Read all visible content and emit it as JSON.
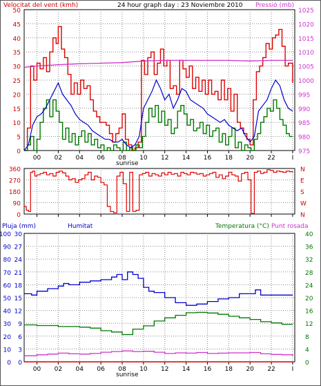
{
  "header": {
    "left_title": "Velocitat del vent (kmh)",
    "center_title": "24 hour graph day : 23 Noviembre 2010",
    "right_title": "Pressió (mb)"
  },
  "labels": {
    "sunrise": "sunrise",
    "pluja": "Pluja (mm)",
    "humitat": "Humitat",
    "temperatura": "Temperatura (°C)",
    "punt_rosada": "Punt rosada"
  },
  "colors": {
    "wind_gust": "#dd0000",
    "wind_avg": "#0000cc",
    "wind_speed": "#007700",
    "pressure": "#cc33cc",
    "direction": "#dd0000",
    "humidity": "#0000cc",
    "temperature": "#007700",
    "dewpoint": "#cc33cc",
    "rain": "#cc0000",
    "axis_left": "#cc0000",
    "axis_right_pressure": "#cc33cc",
    "axis_rain": "#0000cc",
    "axis_temp": "#007700"
  },
  "chart_data": [
    {
      "type": "line",
      "name_key": "wind",
      "x_ticks": [
        "00",
        "02",
        "04",
        "06",
        "08",
        "10",
        "12",
        "14",
        "16",
        "18",
        "20",
        "22",
        "I"
      ],
      "x_range": [
        -1.2,
        24.2
      ],
      "ylim": [
        0,
        50
      ],
      "y_ticks": [
        0,
        5,
        10,
        15,
        20,
        25,
        30,
        35,
        40,
        45,
        50
      ],
      "y2lim": [
        975,
        1025
      ],
      "y2_ticks": [
        975,
        980,
        985,
        990,
        995,
        1000,
        1005,
        1010,
        1015,
        1020,
        1025
      ],
      "grid": true,
      "series": [
        {
          "key": "gust",
          "x": [
            -1.2,
            -0.9,
            -0.6,
            -0.3,
            0,
            0.3,
            0.6,
            0.9,
            1.2,
            1.5,
            1.8,
            2.0,
            2.3,
            2.6,
            2.9,
            3.2,
            3.5,
            3.8,
            4.1,
            4.4,
            4.7,
            5.0,
            5.3,
            5.6,
            5.9,
            6.2,
            6.5,
            6.8,
            7.1,
            7.4,
            7.7,
            8.0,
            8.3,
            8.6,
            8.9,
            9.2,
            9.5,
            9.8,
            10.1,
            10.4,
            10.7,
            11.0,
            11.3,
            11.6,
            11.9,
            12.2,
            12.5,
            12.8,
            13.1,
            13.4,
            13.7,
            14.0,
            14.3,
            14.6,
            14.9,
            15.2,
            15.5,
            15.8,
            16.1,
            16.4,
            16.7,
            17.0,
            17.3,
            17.6,
            17.9,
            18.2,
            18.5,
            18.8,
            19.1,
            19.4,
            19.7,
            20.0,
            20.3,
            20.6,
            20.9,
            21.2,
            21.5,
            21.8,
            22.1,
            22.4,
            22.7,
            23.0,
            23.3,
            23.6,
            24.0
          ],
          "y": [
            0,
            8,
            30,
            25,
            31,
            29,
            33,
            28,
            35,
            40,
            38,
            44,
            36,
            33,
            27,
            20,
            24,
            20,
            25,
            22,
            23,
            18,
            14,
            12,
            10,
            10,
            9,
            6,
            3,
            6,
            8,
            13,
            4,
            2,
            0,
            1,
            3,
            32,
            27,
            33,
            35,
            27,
            31,
            36,
            30,
            32,
            22,
            23,
            20,
            32,
            29,
            26,
            30,
            22,
            26,
            21,
            25,
            20,
            25,
            20,
            21,
            18,
            25,
            18,
            22,
            14,
            20,
            10,
            8,
            6,
            4,
            2,
            18,
            28,
            30,
            33,
            38,
            36,
            40,
            41,
            43,
            37,
            30,
            31,
            24
          ]
        },
        {
          "key": "avg",
          "x": [
            -1.2,
            -0.8,
            -0.4,
            0,
            0.4,
            0.8,
            1.2,
            1.6,
            2.0,
            2.4,
            2.8,
            3.2,
            3.6,
            4.0,
            4.4,
            4.8,
            5.2,
            5.6,
            6.0,
            6.4,
            6.8,
            7.2,
            7.6,
            8.0,
            8.4,
            8.8,
            9.2,
            9.6,
            10.0,
            10.4,
            10.8,
            11.2,
            11.6,
            12.0,
            12.4,
            12.8,
            13.2,
            13.6,
            14.0,
            14.4,
            14.8,
            15.2,
            15.6,
            16.0,
            16.4,
            16.8,
            17.2,
            17.6,
            18.0,
            18.4,
            18.8,
            19.2,
            19.6,
            20.0,
            20.4,
            20.8,
            21.2,
            21.6,
            22.0,
            22.4,
            22.8,
            23.2,
            23.6,
            24.0
          ],
          "y": [
            0,
            2,
            9,
            12,
            13,
            15,
            18,
            21,
            24,
            20,
            18,
            16,
            13,
            11,
            10,
            9,
            7,
            6,
            5,
            4,
            4,
            3,
            3,
            4,
            2,
            1,
            2,
            5,
            15,
            18,
            21,
            25,
            22,
            18,
            20,
            15,
            18,
            22,
            21,
            18,
            17,
            16,
            15,
            13,
            12,
            11,
            10,
            11,
            9,
            8,
            7,
            8,
            5,
            3,
            5,
            14,
            16,
            18,
            22,
            25,
            23,
            18,
            15,
            14
          ]
        },
        {
          "key": "speed",
          "x": [
            -1.2,
            -0.9,
            -0.6,
            -0.3,
            0,
            0.3,
            0.6,
            0.9,
            1.2,
            1.5,
            1.8,
            2.1,
            2.4,
            2.7,
            3.0,
            3.3,
            3.6,
            3.9,
            4.2,
            4.5,
            4.8,
            5.1,
            5.4,
            5.7,
            6.0,
            6.3,
            6.6,
            6.9,
            7.2,
            7.5,
            7.8,
            8.1,
            8.4,
            8.7,
            9.0,
            9.3,
            9.6,
            9.9,
            10.2,
            10.5,
            10.8,
            11.1,
            11.4,
            11.7,
            12.0,
            12.3,
            12.6,
            12.9,
            13.2,
            13.5,
            13.8,
            14.1,
            14.4,
            14.7,
            15.0,
            15.3,
            15.6,
            15.9,
            16.2,
            16.5,
            16.8,
            17.1,
            17.4,
            17.7,
            18.0,
            18.3,
            18.6,
            18.9,
            19.2,
            19.5,
            19.8,
            20.1,
            20.4,
            20.7,
            21.0,
            21.3,
            21.6,
            21.9,
            22.2,
            22.5,
            22.8,
            23.1,
            23.4,
            23.7,
            24.0
          ],
          "y": [
            0,
            2,
            5,
            0,
            4,
            10,
            15,
            18,
            12,
            18,
            14,
            10,
            4,
            8,
            3,
            6,
            2,
            5,
            7,
            3,
            6,
            2,
            4,
            1,
            2,
            0,
            1,
            0,
            2,
            1,
            0,
            3,
            0,
            1,
            0,
            2,
            1,
            5,
            10,
            15,
            12,
            16,
            10,
            14,
            9,
            11,
            6,
            8,
            14,
            16,
            13,
            9,
            11,
            7,
            8,
            10,
            6,
            9,
            5,
            7,
            8,
            3,
            6,
            2,
            5,
            8,
            1,
            3,
            0,
            2,
            1,
            0,
            4,
            6,
            10,
            12,
            15,
            14,
            18,
            15,
            11,
            9,
            6,
            5,
            5
          ]
        },
        {
          "key": "pressure",
          "axis": "y2",
          "x": [
            -1.2,
            0,
            2,
            4,
            6,
            8,
            10,
            12,
            14,
            16,
            18,
            20,
            22,
            24
          ],
          "y": [
            1004.5,
            1005,
            1005.5,
            1005.8,
            1006,
            1006.2,
            1006.8,
            1007,
            1007,
            1007,
            1007,
            1006.8,
            1007,
            1007
          ]
        }
      ]
    },
    {
      "type": "scatter",
      "name_key": "wind_direction",
      "ylim": [
        0,
        360
      ],
      "y_ticks": [
        0,
        90,
        180,
        270,
        360
      ],
      "y2_ticks": [
        "N",
        "W",
        "S",
        "E",
        "N"
      ],
      "x": [
        -1.2,
        -1.0,
        -0.8,
        -0.6,
        -0.4,
        -0.2,
        0,
        0.3,
        0.6,
        0.9,
        1.2,
        1.5,
        1.8,
        2.1,
        2.4,
        2.7,
        3.0,
        3.3,
        3.6,
        3.9,
        4.2,
        4.5,
        4.8,
        5.1,
        5.4,
        5.7,
        6.0,
        6.3,
        6.6,
        6.9,
        7.2,
        7.5,
        7.8,
        8.1,
        8.4,
        8.7,
        9.0,
        9.3,
        9.6,
        9.9,
        10.2,
        10.5,
        10.8,
        11.1,
        11.4,
        11.7,
        12.0,
        12.3,
        12.6,
        12.9,
        13.2,
        13.5,
        13.8,
        14.1,
        14.4,
        14.7,
        15.0,
        15.3,
        15.6,
        15.9,
        16.2,
        16.5,
        16.8,
        17.1,
        17.4,
        17.7,
        18.0,
        18.3,
        18.6,
        18.9,
        19.2,
        19.5,
        19.8,
        20.1,
        20.4,
        20.7,
        21.0,
        21.3,
        21.6,
        21.9,
        22.2,
        22.5,
        22.8,
        23.1,
        23.4,
        23.7,
        24.0
      ],
      "y": [
        60,
        30,
        20,
        330,
        340,
        300,
        310,
        320,
        330,
        310,
        320,
        300,
        330,
        340,
        325,
        300,
        270,
        280,
        250,
        270,
        280,
        310,
        330,
        270,
        300,
        290,
        250,
        230,
        60,
        20,
        10,
        300,
        330,
        240,
        20,
        330,
        20,
        30,
        310,
        320,
        330,
        300,
        320,
        310,
        300,
        325,
        310,
        330,
        315,
        320,
        300,
        330,
        320,
        310,
        330,
        325,
        315,
        320,
        300,
        310,
        320,
        330,
        290,
        310,
        280,
        300,
        330,
        310,
        300,
        260,
        320,
        330,
        270,
        5,
        330,
        340,
        320,
        330,
        350,
        345,
        330,
        340,
        335,
        330,
        340,
        335,
        330
      ]
    },
    {
      "type": "line",
      "name_key": "humidity_temp",
      "x_ticks": [
        "00",
        "02",
        "04",
        "06",
        "08",
        "10",
        "12",
        "14",
        "16",
        "18",
        "20",
        "22",
        "I"
      ],
      "left_outer_ticks": [
        0,
        10,
        20,
        30,
        40,
        50,
        60,
        70,
        80,
        90,
        100
      ],
      "left_inner_ticks": [
        0,
        3,
        6,
        9,
        12,
        15,
        18,
        21,
        24,
        27,
        30
      ],
      "ylim": [
        0,
        100
      ],
      "y2lim": [
        0,
        40
      ],
      "y2_ticks": [
        0,
        4,
        8,
        12,
        16,
        20,
        24,
        28,
        32,
        36,
        40
      ],
      "grid": true,
      "series": [
        {
          "key": "humidity",
          "x": [
            -1.2,
            -0.5,
            0,
            1,
            2,
            2.5,
            3,
            4,
            5,
            6,
            7,
            7.5,
            8,
            8.5,
            9,
            9.5,
            10,
            10.5,
            11,
            12,
            13,
            14,
            15,
            16,
            17,
            18,
            19,
            20,
            20.5,
            21,
            22,
            23,
            24
          ],
          "y": [
            53,
            52,
            55,
            57,
            59,
            61,
            60,
            62,
            63,
            64,
            66,
            68,
            64,
            70,
            68,
            65,
            58,
            55,
            54,
            50,
            46,
            44,
            45,
            47,
            49,
            50,
            53,
            53,
            56,
            52,
            52,
            52,
            52
          ]
        },
        {
          "key": "temperature",
          "axis": "y2",
          "x": [
            -1.2,
            0,
            1,
            2,
            3,
            4,
            5,
            6,
            7,
            8,
            9,
            10,
            11,
            12,
            13,
            14,
            15,
            16,
            17,
            18,
            19,
            20,
            21,
            22,
            23,
            24
          ],
          "y": [
            11.5,
            11.3,
            11.3,
            11,
            11,
            10.8,
            10.5,
            9.7,
            9.3,
            8.5,
            10.2,
            11.2,
            12.7,
            13.7,
            14.5,
            15.3,
            15.4,
            15.2,
            14.8,
            14.2,
            13.7,
            13.2,
            12.5,
            12.1,
            11.7,
            11.7
          ]
        },
        {
          "key": "dewpoint",
          "axis": "y2",
          "x": [
            -1.2,
            0,
            1,
            2,
            3,
            4,
            5,
            6,
            7,
            8,
            9,
            10,
            11,
            12,
            13,
            14,
            15,
            16,
            17,
            18,
            19,
            20,
            21,
            22,
            23,
            24
          ],
          "y": [
            1.9,
            2.2,
            2.4,
            2.7,
            2.5,
            2.4,
            2.6,
            3.0,
            3.2,
            3.4,
            3.2,
            3.3,
            3.0,
            2.6,
            2.8,
            2.7,
            2.9,
            2.6,
            2.7,
            2.8,
            2.8,
            2.9,
            2.5,
            2.3,
            2.2,
            1.8
          ]
        },
        {
          "key": "rain",
          "x": [
            -1.2,
            24
          ],
          "y": [
            0,
            0
          ]
        }
      ]
    }
  ]
}
